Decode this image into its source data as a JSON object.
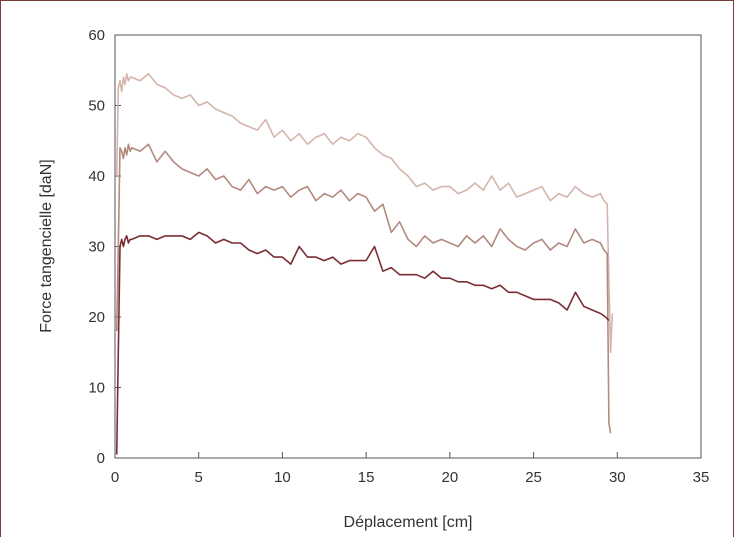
{
  "chart_data": {
    "type": "line",
    "title": "",
    "xlabel": "Déplacement [cm]",
    "ylabel": "Force tangencielle [daN]",
    "xlim": [
      0,
      35
    ],
    "ylim": [
      0,
      60
    ],
    "xticks": [
      "0",
      "5",
      "10",
      "15",
      "20",
      "25",
      "30",
      "35"
    ],
    "yticks": [
      "0",
      "10",
      "20",
      "30",
      "40",
      "50",
      "60"
    ],
    "grid": false,
    "legend": "none",
    "series": [
      {
        "color": "#d4b5ac",
        "x": [
          0.1,
          0.2,
          0.3,
          0.4,
          0.5,
          0.6,
          0.7,
          0.8,
          0.9,
          1.0,
          1.5,
          2.0,
          2.5,
          3.0,
          3.5,
          4.0,
          4.5,
          5.0,
          5.5,
          6.0,
          6.5,
          7.0,
          7.5,
          8.0,
          8.5,
          9.0,
          9.5,
          10.0,
          10.5,
          11.0,
          11.5,
          12.0,
          12.5,
          13.0,
          13.5,
          14.0,
          14.5,
          15.0,
          15.5,
          16.0,
          16.5,
          17.0,
          17.5,
          18.0,
          18.5,
          19.0,
          19.5,
          20.0,
          20.5,
          21.0,
          21.5,
          22.0,
          22.5,
          23.0,
          23.5,
          24.0,
          24.5,
          25.0,
          25.5,
          26.0,
          26.5,
          27.0,
          27.5,
          28.0,
          28.5,
          29.0,
          29.2,
          29.4,
          29.5,
          29.6,
          29.7
        ],
        "y": [
          40.0,
          52.5,
          53.5,
          52.0,
          54.0,
          53.0,
          54.5,
          53.5,
          54.0,
          54.0,
          53.5,
          54.5,
          53.0,
          52.5,
          51.5,
          51.0,
          51.5,
          50.0,
          50.5,
          49.5,
          49.0,
          48.5,
          47.5,
          47.0,
          46.5,
          48.0,
          45.5,
          46.5,
          45.0,
          46.0,
          44.5,
          45.5,
          46.0,
          44.5,
          45.5,
          45.0,
          46.0,
          45.5,
          44.0,
          43.0,
          42.5,
          41.0,
          40.0,
          38.5,
          39.0,
          38.0,
          38.5,
          38.5,
          37.5,
          38.0,
          39.0,
          38.0,
          40.0,
          38.0,
          39.0,
          37.0,
          37.5,
          38.0,
          38.5,
          36.5,
          37.5,
          37.0,
          38.5,
          37.5,
          37.0,
          37.5,
          36.5,
          36.0,
          25.0,
          15.0,
          20.5
        ]
      },
      {
        "color": "#b48a80",
        "x": [
          0.1,
          0.2,
          0.3,
          0.4,
          0.5,
          0.6,
          0.7,
          0.8,
          0.9,
          1.0,
          1.5,
          2.0,
          2.5,
          3.0,
          3.5,
          4.0,
          4.5,
          5.0,
          5.5,
          6.0,
          6.5,
          7.0,
          7.5,
          8.0,
          8.5,
          9.0,
          9.5,
          10.0,
          10.5,
          11.0,
          11.5,
          12.0,
          12.5,
          13.0,
          13.5,
          14.0,
          14.5,
          15.0,
          15.5,
          16.0,
          16.5,
          17.0,
          17.5,
          18.0,
          18.5,
          19.0,
          19.5,
          20.0,
          20.5,
          21.0,
          21.5,
          22.0,
          22.5,
          23.0,
          23.5,
          24.0,
          24.5,
          25.0,
          25.5,
          26.0,
          26.5,
          27.0,
          27.5,
          28.0,
          28.5,
          29.0,
          29.2,
          29.4,
          29.5,
          29.6
        ],
        "y": [
          18.0,
          30.0,
          44.0,
          43.5,
          42.5,
          44.0,
          43.0,
          44.5,
          43.5,
          44.0,
          43.5,
          44.5,
          42.0,
          43.5,
          42.0,
          41.0,
          40.5,
          40.0,
          41.0,
          39.5,
          40.0,
          38.5,
          38.0,
          39.5,
          37.5,
          38.5,
          38.0,
          38.5,
          37.0,
          38.0,
          38.5,
          36.5,
          37.5,
          37.0,
          38.0,
          36.5,
          37.5,
          37.0,
          35.0,
          36.0,
          32.0,
          33.5,
          31.0,
          30.0,
          31.5,
          30.5,
          31.0,
          30.5,
          30.0,
          31.5,
          30.5,
          31.5,
          30.0,
          32.5,
          31.0,
          30.0,
          29.5,
          30.5,
          31.0,
          29.5,
          30.5,
          30.0,
          32.5,
          30.5,
          31.0,
          30.5,
          29.5,
          29.0,
          5.0,
          3.5
        ]
      },
      {
        "color": "#7a2e34",
        "x": [
          0.1,
          0.2,
          0.3,
          0.4,
          0.5,
          0.6,
          0.7,
          0.8,
          0.9,
          1.0,
          1.5,
          2.0,
          2.5,
          3.0,
          3.5,
          4.0,
          4.5,
          5.0,
          5.5,
          6.0,
          6.5,
          7.0,
          7.5,
          8.0,
          8.5,
          9.0,
          9.5,
          10.0,
          10.5,
          11.0,
          11.5,
          12.0,
          12.5,
          13.0,
          13.5,
          14.0,
          14.5,
          15.0,
          15.5,
          16.0,
          16.5,
          17.0,
          17.5,
          18.0,
          18.5,
          19.0,
          19.5,
          20.0,
          20.5,
          21.0,
          21.5,
          22.0,
          22.5,
          23.0,
          23.5,
          24.0,
          24.5,
          25.0,
          25.5,
          26.0,
          26.5,
          27.0,
          27.5,
          28.0,
          28.5,
          29.0,
          29.3,
          29.5
        ],
        "y": [
          0.5,
          15.0,
          30.0,
          31.0,
          30.0,
          31.0,
          31.5,
          30.5,
          31.0,
          31.0,
          31.5,
          31.5,
          31.0,
          31.5,
          31.5,
          31.5,
          31.0,
          32.0,
          31.5,
          30.5,
          31.0,
          30.5,
          30.5,
          29.5,
          29.0,
          29.5,
          28.5,
          28.5,
          27.5,
          30.0,
          28.5,
          28.5,
          28.0,
          28.5,
          27.5,
          28.0,
          28.0,
          28.0,
          30.0,
          26.5,
          27.0,
          26.0,
          26.0,
          26.0,
          25.5,
          26.5,
          25.5,
          25.5,
          25.0,
          25.0,
          24.5,
          24.5,
          24.0,
          24.5,
          23.5,
          23.5,
          23.0,
          22.5,
          22.5,
          22.5,
          22.0,
          21.0,
          23.5,
          21.5,
          21.0,
          20.5,
          20.0,
          19.5
        ]
      }
    ]
  }
}
